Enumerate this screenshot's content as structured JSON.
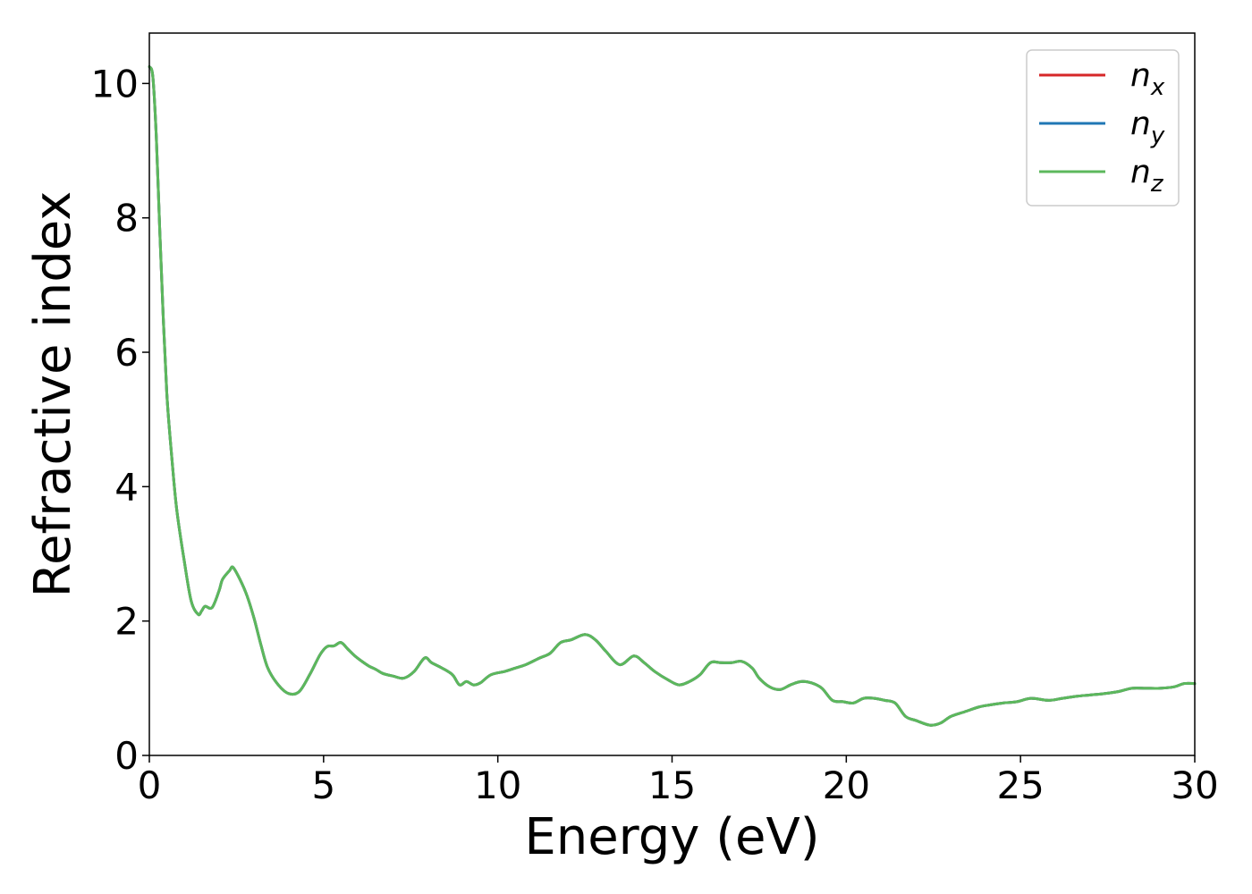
{
  "chart_data": {
    "type": "line",
    "xlabel": "Energy (eV)",
    "ylabel": "Refractive index",
    "xlim": [
      0,
      30
    ],
    "ylim": [
      0,
      10.75
    ],
    "xticks": [
      0,
      5,
      10,
      15,
      20,
      25,
      30
    ],
    "yticks": [
      0,
      2,
      4,
      6,
      8,
      10
    ],
    "grid": false,
    "legend_position": "top-right",
    "x": [
      0.0,
      0.1,
      0.2,
      0.3,
      0.4,
      0.5,
      0.6,
      0.7,
      0.8,
      1.0,
      1.2,
      1.4,
      1.5,
      1.6,
      1.8,
      2.0,
      2.1,
      2.3,
      2.4,
      2.6,
      2.8,
      3.0,
      3.2,
      3.4,
      3.7,
      4.0,
      4.3,
      4.6,
      4.9,
      5.1,
      5.3,
      5.5,
      5.7,
      5.9,
      6.1,
      6.3,
      6.5,
      6.7,
      7.0,
      7.3,
      7.6,
      7.9,
      8.1,
      8.4,
      8.7,
      8.9,
      9.1,
      9.3,
      9.5,
      9.8,
      10.2,
      10.5,
      10.8,
      11.2,
      11.5,
      11.8,
      12.1,
      12.5,
      12.8,
      13.1,
      13.5,
      13.9,
      14.2,
      14.5,
      14.9,
      15.2,
      15.5,
      15.8,
      16.1,
      16.4,
      16.7,
      17.0,
      17.3,
      17.5,
      17.8,
      18.1,
      18.4,
      18.7,
      19.0,
      19.3,
      19.6,
      19.9,
      20.2,
      20.5,
      20.8,
      21.1,
      21.4,
      21.7,
      22.0,
      22.4,
      22.7,
      23.0,
      23.4,
      23.8,
      24.1,
      24.5,
      24.9,
      25.3,
      25.8,
      26.2,
      26.6,
      27.0,
      27.4,
      27.8,
      28.2,
      28.6,
      29.0,
      29.4,
      29.7,
      30.0
    ],
    "series": [
      {
        "name": "n_x",
        "legend_text": "n",
        "legend_sub": "x",
        "color": "#d62728",
        "values": [
          10.25,
          10.1,
          9.2,
          7.8,
          6.5,
          5.4,
          4.7,
          4.1,
          3.6,
          2.9,
          2.3,
          2.1,
          2.15,
          2.22,
          2.2,
          2.45,
          2.62,
          2.75,
          2.8,
          2.62,
          2.38,
          2.05,
          1.65,
          1.3,
          1.05,
          0.92,
          0.95,
          1.2,
          1.5,
          1.62,
          1.63,
          1.68,
          1.58,
          1.48,
          1.4,
          1.33,
          1.28,
          1.22,
          1.18,
          1.15,
          1.25,
          1.45,
          1.38,
          1.3,
          1.2,
          1.05,
          1.1,
          1.05,
          1.08,
          1.2,
          1.25,
          1.3,
          1.35,
          1.45,
          1.52,
          1.68,
          1.72,
          1.8,
          1.72,
          1.55,
          1.35,
          1.48,
          1.38,
          1.25,
          1.12,
          1.05,
          1.1,
          1.2,
          1.38,
          1.38,
          1.38,
          1.4,
          1.3,
          1.15,
          1.02,
          0.98,
          1.05,
          1.1,
          1.08,
          1.0,
          0.82,
          0.8,
          0.78,
          0.85,
          0.85,
          0.82,
          0.78,
          0.58,
          0.52,
          0.45,
          0.48,
          0.58,
          0.65,
          0.72,
          0.75,
          0.78,
          0.8,
          0.85,
          0.82,
          0.85,
          0.88,
          0.9,
          0.92,
          0.95,
          1.0,
          1.0,
          1.0,
          1.02,
          1.07,
          1.07
        ]
      },
      {
        "name": "n_y",
        "legend_text": "n",
        "legend_sub": "y",
        "color": "#1f77b4",
        "values": [
          10.25,
          10.1,
          9.2,
          7.8,
          6.5,
          5.4,
          4.7,
          4.1,
          3.6,
          2.9,
          2.3,
          2.1,
          2.15,
          2.22,
          2.2,
          2.45,
          2.62,
          2.75,
          2.8,
          2.62,
          2.38,
          2.05,
          1.65,
          1.3,
          1.05,
          0.92,
          0.95,
          1.2,
          1.5,
          1.62,
          1.63,
          1.68,
          1.58,
          1.48,
          1.4,
          1.33,
          1.28,
          1.22,
          1.18,
          1.15,
          1.25,
          1.45,
          1.38,
          1.3,
          1.2,
          1.05,
          1.1,
          1.05,
          1.08,
          1.2,
          1.25,
          1.3,
          1.35,
          1.45,
          1.52,
          1.68,
          1.72,
          1.8,
          1.72,
          1.55,
          1.35,
          1.48,
          1.38,
          1.25,
          1.12,
          1.05,
          1.1,
          1.2,
          1.38,
          1.38,
          1.38,
          1.4,
          1.3,
          1.15,
          1.02,
          0.98,
          1.05,
          1.1,
          1.08,
          1.0,
          0.82,
          0.8,
          0.78,
          0.85,
          0.85,
          0.82,
          0.78,
          0.58,
          0.52,
          0.45,
          0.48,
          0.58,
          0.65,
          0.72,
          0.75,
          0.78,
          0.8,
          0.85,
          0.82,
          0.85,
          0.88,
          0.9,
          0.92,
          0.95,
          1.0,
          1.0,
          1.0,
          1.02,
          1.07,
          1.07
        ]
      },
      {
        "name": "n_z",
        "legend_text": "n",
        "legend_sub": "z",
        "color": "#5cb85c",
        "values": [
          10.25,
          10.1,
          9.2,
          7.8,
          6.5,
          5.4,
          4.7,
          4.1,
          3.6,
          2.9,
          2.3,
          2.1,
          2.15,
          2.22,
          2.2,
          2.45,
          2.62,
          2.75,
          2.8,
          2.62,
          2.38,
          2.05,
          1.65,
          1.3,
          1.05,
          0.92,
          0.95,
          1.2,
          1.5,
          1.62,
          1.63,
          1.68,
          1.58,
          1.48,
          1.4,
          1.33,
          1.28,
          1.22,
          1.18,
          1.15,
          1.25,
          1.45,
          1.38,
          1.3,
          1.2,
          1.05,
          1.1,
          1.05,
          1.08,
          1.2,
          1.25,
          1.3,
          1.35,
          1.45,
          1.52,
          1.68,
          1.72,
          1.8,
          1.72,
          1.55,
          1.35,
          1.48,
          1.38,
          1.25,
          1.12,
          1.05,
          1.1,
          1.2,
          1.38,
          1.38,
          1.38,
          1.4,
          1.3,
          1.15,
          1.02,
          0.98,
          1.05,
          1.1,
          1.08,
          1.0,
          0.82,
          0.8,
          0.78,
          0.85,
          0.85,
          0.82,
          0.78,
          0.58,
          0.52,
          0.45,
          0.48,
          0.58,
          0.65,
          0.72,
          0.75,
          0.78,
          0.8,
          0.85,
          0.82,
          0.85,
          0.88,
          0.9,
          0.92,
          0.95,
          1.0,
          1.0,
          1.0,
          1.02,
          1.07,
          1.07
        ]
      }
    ]
  }
}
